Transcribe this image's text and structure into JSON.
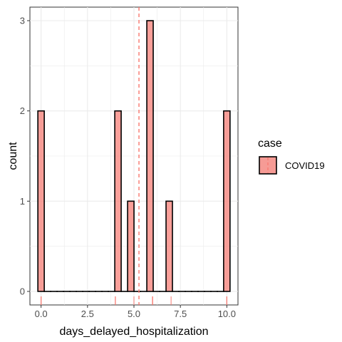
{
  "chart_data": {
    "type": "bar",
    "xlabel": "days_delayed_hospitalization",
    "ylabel": "count",
    "x_ticks": [
      0.0,
      2.5,
      5.0,
      7.5,
      10.0
    ],
    "x_tick_labels": [
      "0.0",
      "2.5",
      "5.0",
      "7.5",
      "10.0"
    ],
    "y_ticks": [
      0,
      1,
      2,
      3
    ],
    "y_tick_labels": [
      "0",
      "1",
      "2",
      "3"
    ],
    "xlim": [
      -0.6,
      10.6
    ],
    "ylim": [
      -0.15,
      3.15
    ],
    "bin_width": 0.345,
    "bins": [
      {
        "x": 0.0,
        "count": 2
      },
      {
        "x": 0.345,
        "count": 0
      },
      {
        "x": 0.69,
        "count": 0
      },
      {
        "x": 1.035,
        "count": 0
      },
      {
        "x": 1.38,
        "count": 0
      },
      {
        "x": 1.725,
        "count": 0
      },
      {
        "x": 2.07,
        "count": 0
      },
      {
        "x": 2.415,
        "count": 0
      },
      {
        "x": 2.76,
        "count": 0
      },
      {
        "x": 3.105,
        "count": 0
      },
      {
        "x": 3.45,
        "count": 0
      },
      {
        "x": 3.795,
        "count": 0
      },
      {
        "x": 4.14,
        "count": 2
      },
      {
        "x": 4.485,
        "count": 0
      },
      {
        "x": 4.83,
        "count": 1
      },
      {
        "x": 5.175,
        "count": 0
      },
      {
        "x": 5.52,
        "count": 0
      },
      {
        "x": 5.865,
        "count": 3
      },
      {
        "x": 6.21,
        "count": 0
      },
      {
        "x": 6.555,
        "count": 0
      },
      {
        "x": 6.9,
        "count": 1
      },
      {
        "x": 7.245,
        "count": 0
      },
      {
        "x": 7.59,
        "count": 0
      },
      {
        "x": 7.935,
        "count": 0
      },
      {
        "x": 8.28,
        "count": 0
      },
      {
        "x": 8.625,
        "count": 0
      },
      {
        "x": 8.97,
        "count": 0
      },
      {
        "x": 9.315,
        "count": 0
      },
      {
        "x": 9.66,
        "count": 0
      },
      {
        "x": 10.0,
        "count": 2
      }
    ],
    "rug": [
      0,
      0,
      4,
      4,
      5,
      6,
      6,
      6,
      7,
      10,
      10
    ],
    "mean_line": 5.27,
    "fill_color": "#F8766D",
    "fill_alpha": 0.7,
    "outline_color": "#000000",
    "mean_line_color": "#F8766D",
    "grid": true,
    "legend": {
      "title": "case",
      "entries": [
        "COVID19"
      ],
      "position": "right"
    }
  }
}
